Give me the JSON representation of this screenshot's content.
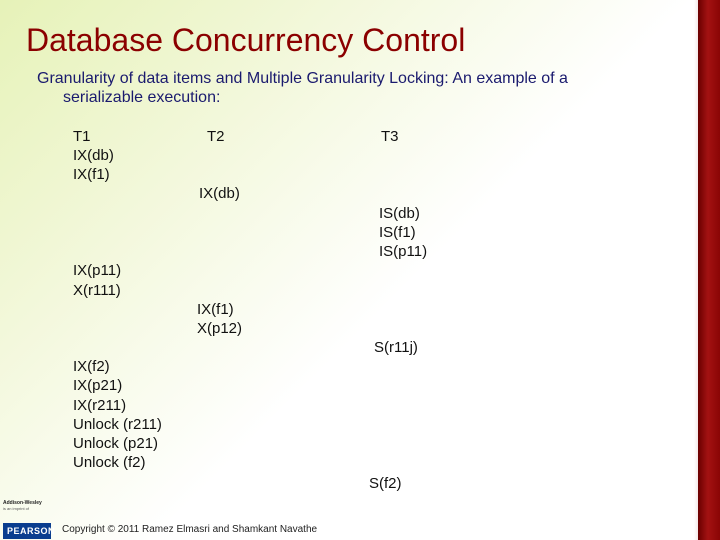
{
  "slide": {
    "title": "Database Concurrency Control",
    "subtitle_line1": "Granularity of data items and Multiple Granularity Locking: An example of a",
    "subtitle_line2": "serializable execution:"
  },
  "schedule": {
    "headers": [
      "T1",
      "T2",
      "T3"
    ],
    "t1_block1": [
      "IX(db)",
      "IX(f1)"
    ],
    "t2_block1": [
      "IX(db)"
    ],
    "t3_block1": [
      "IS(db)",
      "IS(f1)",
      "IS(p11)"
    ],
    "t1_block2": [
      "IX(p11)",
      "X(r111)"
    ],
    "t2_block2": [
      "IX(f1)",
      "X(p12)"
    ],
    "t3_block2": [
      "S(r11j)"
    ],
    "t1_block3": [
      "IX(f2)",
      "IX(p21)",
      "IX(r211)",
      "Unlock (r211)",
      "Unlock (p21)",
      "Unlock (f2)"
    ],
    "t3_block3": [
      "S(f2)"
    ]
  },
  "footer": {
    "publisher_line1": "Addison-Wesley",
    "publisher_line2": "is an imprint of",
    "pearson_label": "PEARSON",
    "copyright": "Copyright © 2011 Ramez Elmasri and Shamkant Navathe"
  },
  "colors": {
    "title": "#8b0000",
    "subtitle": "#1a1a6e",
    "right_bar": "#a31212",
    "background_tint": "#e6f2b8"
  }
}
